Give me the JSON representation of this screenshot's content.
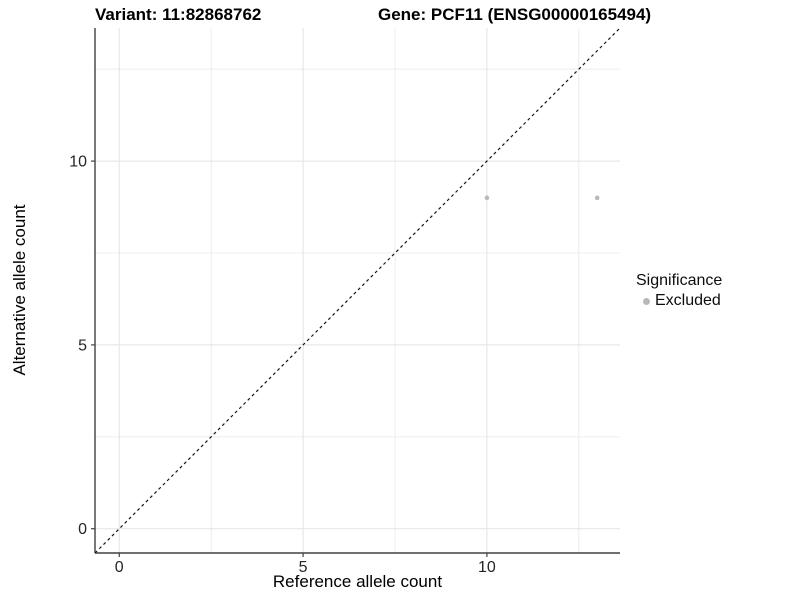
{
  "header": {
    "variant_title": "Variant: 11:82868762",
    "gene_title": "Gene: PCF11 (ENSG00000165494)"
  },
  "axes": {
    "x_label": "Reference allele count",
    "y_label": "Alternative allele count"
  },
  "legend": {
    "title": "Significance",
    "entries": [
      {
        "label": "Excluded",
        "color": "#b9b9b9"
      }
    ]
  },
  "chart_data": {
    "type": "scatter",
    "title_left": "Variant: 11:82868762",
    "title_right": "Gene: PCF11 (ENSG00000165494)",
    "xlabel": "Reference allele count",
    "ylabel": "Alternative allele count",
    "xlim": [
      -0.66,
      13.62
    ],
    "ylim": [
      -0.66,
      13.62
    ],
    "x_ticks": [
      0,
      5,
      10
    ],
    "y_ticks": [
      0,
      5,
      10
    ],
    "x_minor": [
      2.5,
      7.5,
      12.5
    ],
    "y_minor": [
      2.5,
      7.5,
      12.5
    ],
    "grid": true,
    "legend_position": "right",
    "series": [
      {
        "name": "Excluded",
        "color": "#b9b9b9",
        "point_radius": 2.3,
        "points": [
          [
            10,
            9
          ],
          [
            13,
            9
          ]
        ]
      }
    ],
    "reference_line": {
      "kind": "identity y=x",
      "from": [
        -0.66,
        -0.66
      ],
      "to": [
        13.62,
        13.62
      ],
      "style": "dashed",
      "color": "#161616"
    },
    "colors": {
      "grid_major": "#e3e3e3",
      "grid_minor": "#ececec",
      "axis": "#404040",
      "tick_text": "#262626"
    }
  }
}
